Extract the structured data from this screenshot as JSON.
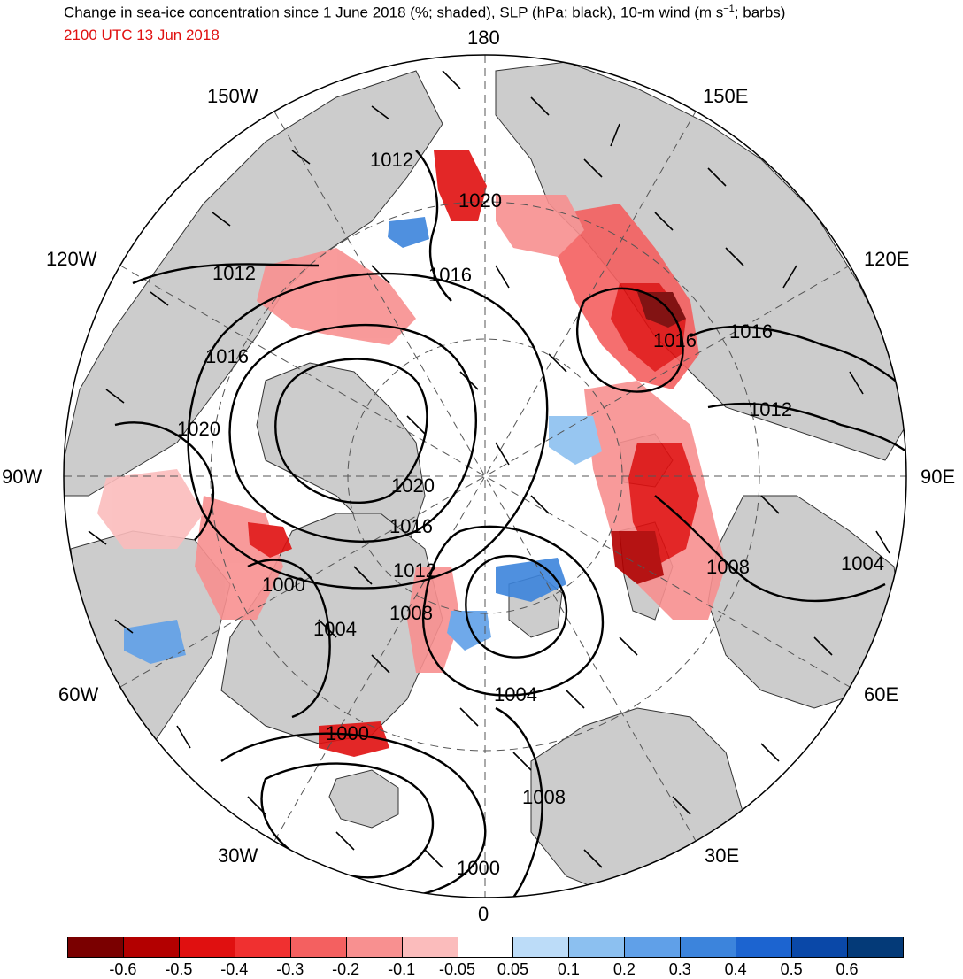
{
  "title": "Change in sea-ice concentration since 1 June 2018 (%; shaded), SLP (hPa; black), 10-m wind (m s",
  "title_sup": "−1",
  "title_tail": "; barbs)",
  "valid_time": "2100 UTC 13 Jun 2018",
  "longitude_labels": {
    "top": "180",
    "bottom": "0",
    "left": "90W",
    "right": "90E",
    "upper_left_1": "150W",
    "upper_left_2": "120W",
    "lower_left_1": "60W",
    "lower_left_2": "30W",
    "upper_right_1": "150E",
    "upper_right_2": "120E",
    "lower_right_1": "60E",
    "lower_right_2": "30E"
  },
  "contour_labels": [
    {
      "text": "1012"
    },
    {
      "text": "1020"
    },
    {
      "text": "1016"
    },
    {
      "text": "1012"
    },
    {
      "text": "1016"
    },
    {
      "text": "1020"
    },
    {
      "text": "1016"
    },
    {
      "text": "1016"
    },
    {
      "text": "1012"
    },
    {
      "text": "1020"
    },
    {
      "text": "1016"
    },
    {
      "text": "1012"
    },
    {
      "text": "1008"
    },
    {
      "text": "1000"
    },
    {
      "text": "1004"
    },
    {
      "text": "1004"
    },
    {
      "text": "1008"
    },
    {
      "text": "1004"
    },
    {
      "text": "1000"
    },
    {
      "text": "1008"
    },
    {
      "text": "1000"
    }
  ],
  "colorbar": {
    "colors": [
      "#7a0000",
      "#b30000",
      "#e01010",
      "#f03030",
      "#f46060",
      "#f89090",
      "#fbbcbc",
      "#ffffff",
      "#bcdcf8",
      "#8cc0f0",
      "#60a0e8",
      "#3c84dc",
      "#1c64d0",
      "#0a48a8",
      "#043a78"
    ],
    "labels": [
      "-0.6",
      "-0.5",
      "-0.4",
      "-0.3",
      "-0.2",
      "-0.1",
      "-0.05",
      "0.05",
      "0.1",
      "0.2",
      "0.3",
      "0.4",
      "0.5",
      "0.6"
    ]
  },
  "map_colors": {
    "land": "#cccccc",
    "ocean": "#ffffff",
    "contour": "#000000"
  }
}
